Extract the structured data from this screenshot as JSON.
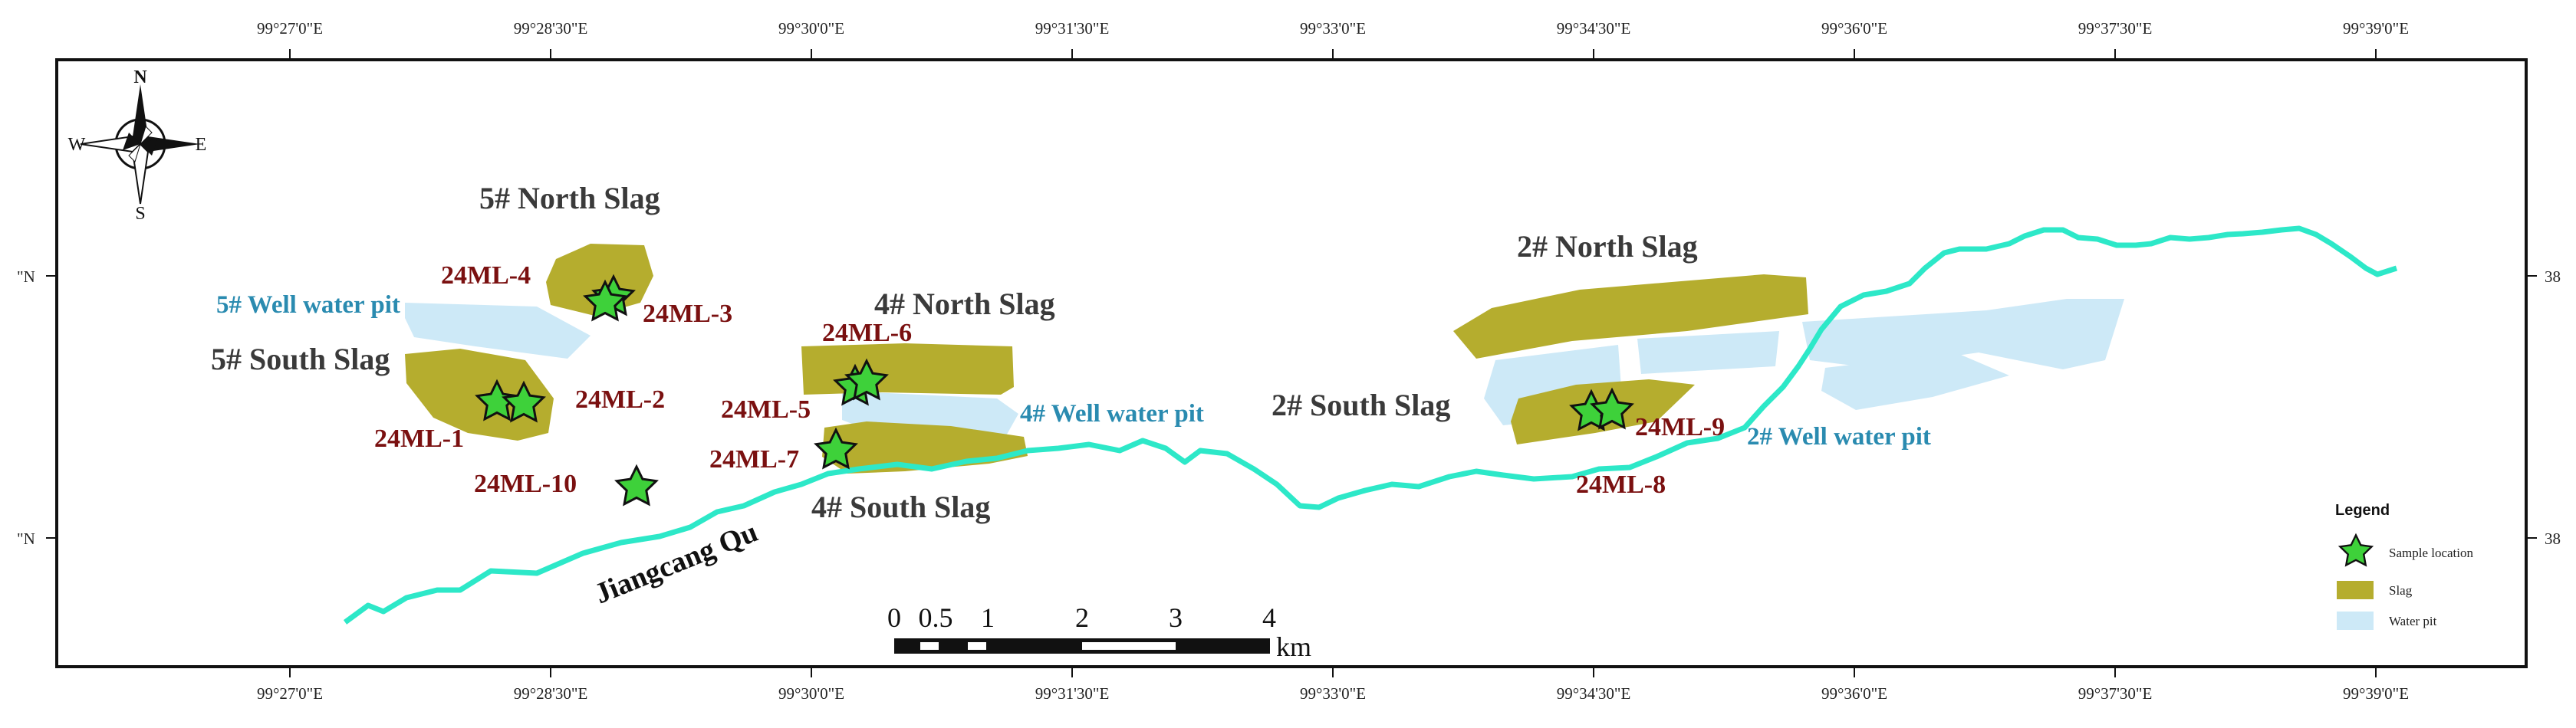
{
  "map": {
    "lon_ticks": [
      "99°27'0\"E",
      "99°28'30\"E",
      "99°30'0\"E",
      "99°31'30\"E",
      "99°33'0\"E",
      "99°34'30\"E",
      "99°36'0\"E",
      "99°37'30\"E",
      "99°39'0\"E"
    ],
    "lat_ticks_left": [
      "\"N",
      "\"N"
    ],
    "lat_ticks_right": [
      "38",
      "38"
    ],
    "compass": {
      "n": "N",
      "s": "S",
      "e": "E",
      "w": "W"
    },
    "regions": {
      "north5": "5# North Slag",
      "south5": "5# South Slag",
      "north4": "4# North Slag",
      "south4": "4# South Slag",
      "north2": "2# North Slag",
      "south2": "2# South Slag"
    },
    "pits": {
      "pit5": "5# Well water pit",
      "pit4": "4# Well water pit",
      "pit2": "2# Well water pit"
    },
    "samples": [
      "24ML-1",
      "24ML-2",
      "24ML-3",
      "24ML-4",
      "24ML-5",
      "24ML-6",
      "24ML-7",
      "24ML-8",
      "24ML-9",
      "24ML-10"
    ],
    "river_name": "Jiangcang Qu",
    "scale": {
      "ticks": [
        "0",
        "0.5",
        "1",
        "2",
        "3",
        "4"
      ],
      "unit": "km"
    },
    "legend": {
      "title": "Legend",
      "items": [
        "Sample location",
        "Slag",
        "Water pit"
      ]
    },
    "colors": {
      "slag": "#b5ad2e",
      "water_pit": "#cde9f7",
      "river": "#2de8c8",
      "star": "#3ed13a",
      "sample_label": "#7a1010",
      "pit_label": "#2a8bb0"
    }
  }
}
